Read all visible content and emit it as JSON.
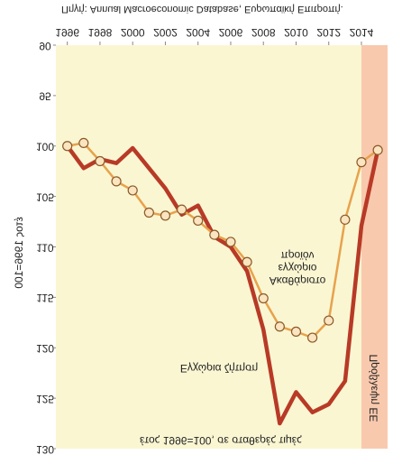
{
  "chart_data": {
    "type": "line",
    "title": "έτος 1996=100, σε σταθερές τιμές",
    "y_label": "έτος 1996=100",
    "source": "Πηγή: Annual Macroeconomic Database, Ευρωπαϊκή Επιτροπή.",
    "forecast_label": "Πρόβλεψη ΕΕ",
    "forecast_start": 2014,
    "x": [
      1996,
      1997,
      1998,
      1999,
      2000,
      2001,
      2002,
      2003,
      2004,
      2005,
      2006,
      2007,
      2008,
      2009,
      2010,
      2011,
      2012,
      2013,
      2014,
      2015
    ],
    "series": [
      {
        "name": "Ακαθάριστο εγχώριο προϊόν",
        "color": "#e8a24c",
        "markers": true,
        "values": [
          100,
          99.7,
          101.5,
          103.5,
          104.4,
          106.6,
          106.9,
          106.3,
          107.4,
          108.8,
          109.5,
          111.5,
          115.1,
          117.9,
          118.4,
          119,
          117.3,
          107.3,
          101.6,
          100.4
        ]
      },
      {
        "name": "Εγχώρια ζήτηση",
        "color": "#b83a26",
        "markers": false,
        "values": [
          100,
          102.2,
          101.3,
          101.7,
          100.2,
          102.2,
          104.2,
          106.8,
          105.9,
          109,
          110,
          112.4,
          118.2,
          127.5,
          124.4,
          126.4,
          125.6,
          123.3,
          107.9,
          100.4
        ]
      }
    ],
    "xlim": [
      1995.3,
      2015.6
    ],
    "xticks": [
      1996,
      1998,
      2000,
      2002,
      2004,
      2006,
      2008,
      2010,
      2012,
      2014
    ],
    "ylim": [
      90,
      130
    ],
    "yticks": [
      90,
      95,
      100,
      105,
      110,
      115,
      120,
      125,
      130
    ],
    "flipped_vertically": true
  }
}
